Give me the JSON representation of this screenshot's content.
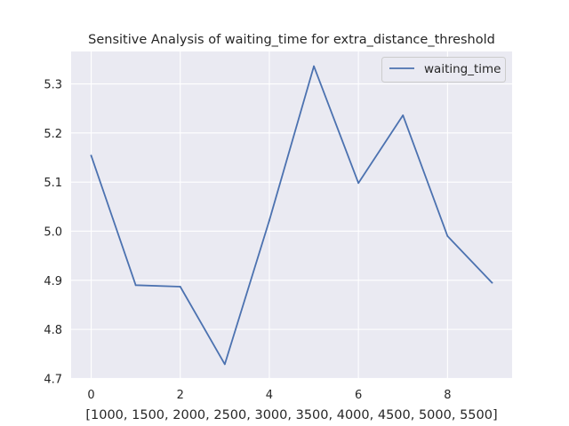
{
  "chart_data": {
    "type": "line",
    "title": "Sensitive Analysis of waiting_time for extra_distance_threshold",
    "xlabel": "[1000, 1500, 2000, 2500, 3000, 3500, 4000, 4500, 5000, 5500]",
    "ylabel": "",
    "x": [
      0,
      1,
      2,
      3,
      4,
      5,
      6,
      7,
      8,
      9
    ],
    "series": [
      {
        "name": "waiting_time",
        "color": "#4c72b0",
        "values": [
          5.154,
          4.89,
          4.887,
          4.729,
          5.022,
          5.336,
          5.098,
          5.236,
          4.99,
          4.895
        ]
      }
    ],
    "xticks": [
      0,
      2,
      4,
      6,
      8
    ],
    "yticks": [
      4.7,
      4.8,
      4.9,
      5.0,
      5.1,
      5.2,
      5.3
    ],
    "xlim": [
      -0.45,
      9.45
    ],
    "ylim": [
      4.699,
      5.366
    ],
    "grid": true,
    "legend_position": "upper-right",
    "colors": {
      "background": "#eaeaf2",
      "grid": "#ffffff",
      "text": "#262626"
    }
  }
}
